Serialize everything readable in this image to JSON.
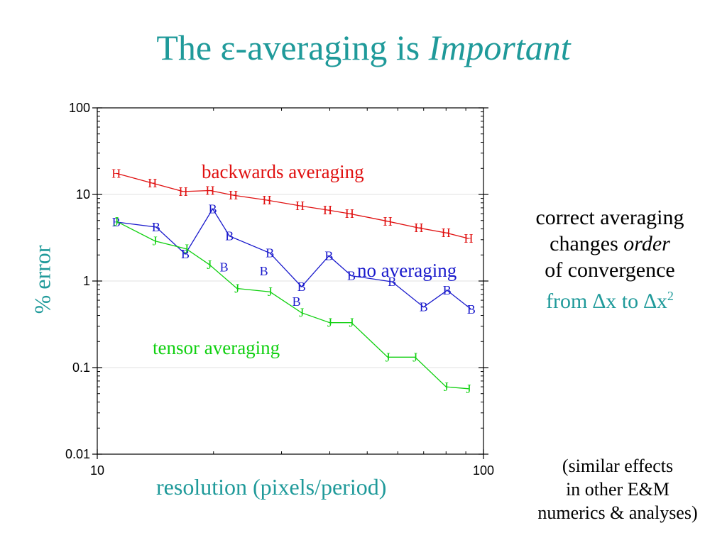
{
  "title": {
    "prefix": "The ε-averaging is ",
    "emphasis": "Important"
  },
  "notes": {
    "line1": "correct averaging",
    "line2_prefix": "changes ",
    "line2_emph": "order",
    "line3": "of convergence",
    "line4_prefix": "from ∆x to ∆x",
    "line4_sup": "2",
    "similar1": "(similar effects",
    "similar2": "in other E&M",
    "similar3": "numerics & analyses)"
  },
  "chart_data": {
    "type": "line",
    "xlabel": "resolution (pixels/period)",
    "ylabel": "% error",
    "x_scale": "log",
    "y_scale": "log",
    "xlim": [
      10,
      100
    ],
    "ylim": [
      0.01,
      100
    ],
    "x_ticks": [
      {
        "v": 10,
        "label": "10"
      },
      {
        "v": 100,
        "label": "100"
      }
    ],
    "y_ticks": [
      {
        "v": 100,
        "label": "100"
      },
      {
        "v": 10,
        "label": "10"
      },
      {
        "v": 1,
        "label": "1"
      },
      {
        "v": 0.1,
        "label": "0.1"
      },
      {
        "v": 0.01,
        "label": "0.01"
      }
    ],
    "grid": true,
    "series": [
      {
        "name": "backwards averaging",
        "marker": "H",
        "color": "#e01010",
        "points": [
          [
            11.2,
            17.5
          ],
          [
            13.9,
            13.5
          ],
          [
            16.7,
            10.8
          ],
          [
            19.6,
            11.1
          ],
          [
            22.5,
            9.8
          ],
          [
            27.5,
            8.6
          ],
          [
            33.5,
            7.4
          ],
          [
            39.5,
            6.6
          ],
          [
            45.0,
            6.0
          ],
          [
            56.5,
            4.9
          ],
          [
            68.0,
            4.1
          ],
          [
            80.0,
            3.6
          ],
          [
            91.5,
            3.1
          ]
        ]
      },
      {
        "name": "no averaging",
        "marker": "B",
        "color": "#1a1acc",
        "points": [
          [
            11.2,
            4.8
          ],
          [
            14.2,
            4.2
          ],
          [
            16.9,
            2.05
          ],
          [
            19.9,
            6.8
          ],
          [
            22.0,
            3.3
          ],
          [
            28.0,
            2.1
          ],
          [
            33.8,
            0.86
          ],
          [
            39.8,
            1.95
          ],
          [
            45.5,
            1.15
          ],
          [
            58.0,
            0.98
          ],
          [
            70.0,
            0.5
          ],
          [
            80.5,
            0.78
          ],
          [
            93.0,
            0.47
          ]
        ]
      },
      {
        "name": "tensor averaging",
        "marker": "J",
        "color": "#10d010",
        "points": [
          [
            11.2,
            4.9
          ],
          [
            14.1,
            2.9
          ],
          [
            17.0,
            2.35
          ],
          [
            19.5,
            1.55
          ],
          [
            23.0,
            0.82
          ],
          [
            28.0,
            0.75
          ],
          [
            33.8,
            0.43
          ],
          [
            40.0,
            0.33
          ],
          [
            45.5,
            0.33
          ],
          [
            56.5,
            0.132
          ],
          [
            66.5,
            0.132
          ],
          [
            80.0,
            0.06
          ],
          [
            91.5,
            0.057
          ]
        ]
      }
    ],
    "extra_markers": [
      {
        "series": "no averaging",
        "marker": "B",
        "x": 21.3,
        "y": 1.45
      },
      {
        "series": "no averaging",
        "marker": "B",
        "x": 27.0,
        "y": 1.3
      },
      {
        "series": "no averaging",
        "marker": "B",
        "x": 32.8,
        "y": 0.58
      }
    ]
  }
}
